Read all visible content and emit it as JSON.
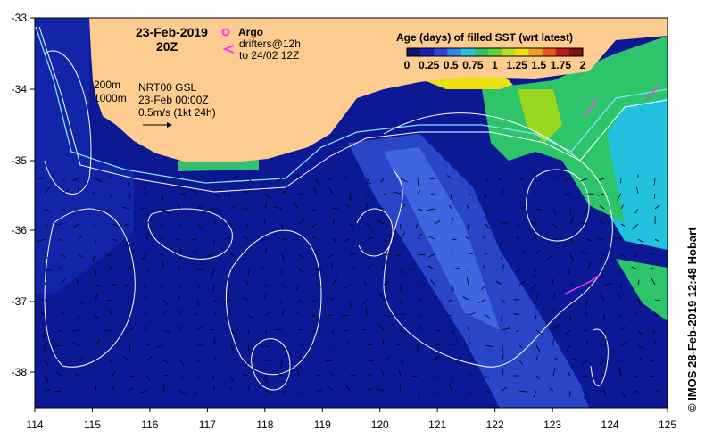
{
  "map": {
    "date_label": "23-Feb-2019",
    "time_label": "20Z",
    "legend_argo_label": "Argo",
    "legend_drifters_label": "drifters@12h",
    "legend_drifters_range": "to 24/02 12Z",
    "contour_200_label": "200m",
    "contour_1000_label": "1000m",
    "product_label": "NRT00 GSL",
    "product_time": "23-Feb 00:00Z",
    "scale_label": "0.5m/s (1kt 24h)",
    "colorbar_title": "Age (days) of filled SST (wrt latest)",
    "colorbar_ticks": [
      "0",
      "0.25",
      "0.5",
      "0.75",
      "1",
      "1.25",
      "1.5",
      "1.75",
      "2"
    ],
    "colorbar_colors": [
      "#0a1670",
      "#1420b8",
      "#2e44d8",
      "#2f86e6",
      "#22c1de",
      "#2ec46a",
      "#5fd235",
      "#b4e020",
      "#f0e010",
      "#f0a020",
      "#e85a16",
      "#c01818",
      "#80100c"
    ],
    "credit": "© IMOS 28-Feb-2019 12:48 Hobart",
    "lon_ticks": [
      "114",
      "115",
      "116",
      "117",
      "118",
      "119",
      "120",
      "121",
      "122",
      "123",
      "124",
      "125"
    ],
    "lat_ticks": [
      "-33",
      "-34",
      "-35",
      "-36",
      "-37",
      "-38"
    ],
    "colors": {
      "ocean": "#0c1894",
      "land": "#fdcc90",
      "contour": "#ffffff",
      "shelf": "#7fe6ff",
      "argo": "#ff33ff"
    }
  }
}
